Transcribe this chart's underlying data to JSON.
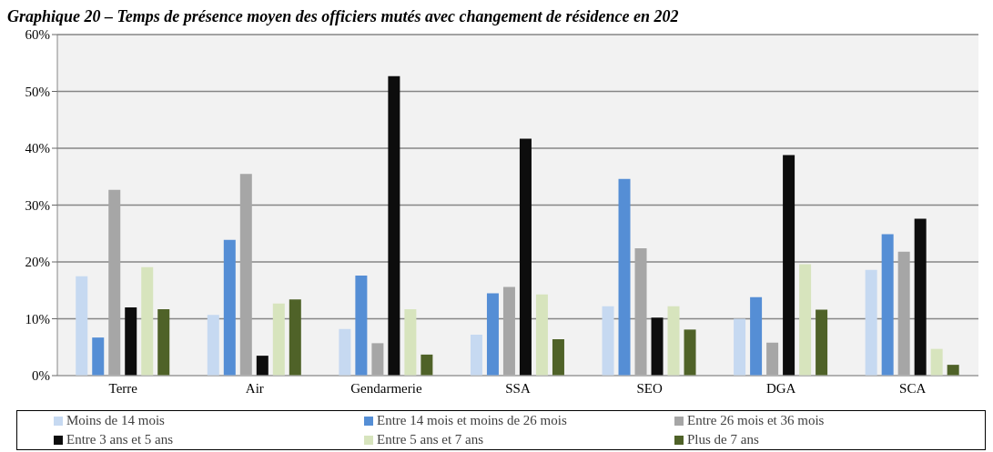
{
  "chart_data": {
    "type": "bar",
    "title": "Graphique 20 – Temps de présence moyen des officiers mutés avec changement de résidence en 202",
    "categories": [
      "Terre",
      "Air",
      "Gendarmerie",
      "SSA",
      "SEO",
      "DGA",
      "SCA"
    ],
    "series": [
      {
        "name": "Moins de 14 mois",
        "color": "#c6d9f1",
        "values": [
          17.5,
          10.7,
          8.2,
          7.2,
          12.2,
          10.0,
          18.6
        ]
      },
      {
        "name": "Entre 14 mois et moins de 26 mois",
        "color": "#558ed5",
        "values": [
          6.7,
          23.9,
          17.6,
          14.5,
          34.6,
          13.8,
          24.9
        ]
      },
      {
        "name": "Entre 26 mois et 36 mois",
        "color": "#a6a6a6",
        "values": [
          32.7,
          35.5,
          5.7,
          15.6,
          22.4,
          5.8,
          21.8
        ]
      },
      {
        "name": "Entre 3 ans et 5 ans",
        "color": "#0d0d0d",
        "values": [
          12.0,
          3.5,
          52.7,
          41.7,
          10.2,
          38.8,
          27.6
        ]
      },
      {
        "name": "Entre 5 ans et 7 ans",
        "color": "#d7e4bd",
        "values": [
          19.1,
          12.7,
          11.7,
          14.3,
          12.2,
          19.6,
          4.7
        ]
      },
      {
        "name": "Plus de 7 ans",
        "color": "#4f6228",
        "values": [
          11.7,
          13.4,
          3.7,
          6.4,
          8.1,
          11.6,
          1.9
        ]
      }
    ],
    "ylim": [
      0,
      60
    ],
    "yticks": [
      {
        "value": 0,
        "label": "0%"
      },
      {
        "value": 10,
        "label": "10%"
      },
      {
        "value": 20,
        "label": "20%"
      },
      {
        "value": 30,
        "label": "30%"
      },
      {
        "value": 40,
        "label": "40%"
      },
      {
        "value": 50,
        "label": "50%"
      },
      {
        "value": 60,
        "label": "60%"
      }
    ],
    "grid": "y",
    "legend": "bottom"
  }
}
